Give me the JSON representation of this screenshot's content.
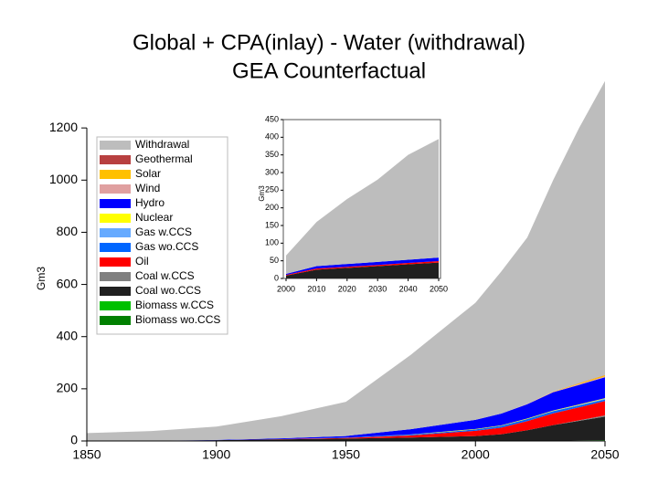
{
  "chart_data": [
    {
      "type": "area",
      "stacked": true,
      "title": [
        "Global + CPA(inlay) - Water (withdrawal)",
        "GEA Counterfactual"
      ],
      "ylabel": "Gm3",
      "x": [
        1850,
        1875,
        1900,
        1925,
        1950,
        1975,
        2000,
        2010,
        2020,
        2030,
        2040,
        2050
      ],
      "xlim": [
        1850,
        2050
      ],
      "xticks": [
        1850,
        1900,
        1950,
        2000,
        2050
      ],
      "ylim": [
        0,
        1400
      ],
      "yticks": [
        0,
        200,
        400,
        600,
        800,
        1000,
        1200
      ],
      "legend": "upper left",
      "series": [
        {
          "name": "Withdrawal",
          "color": "#bdbdbd",
          "values": [
            29,
            37,
            51,
            85,
            131,
            285,
            449,
            545,
            638,
            810,
            978,
            1127
          ]
        },
        {
          "name": "Geothermal",
          "color": "#b84040",
          "values": [
            0,
            0,
            0,
            0,
            0,
            0,
            0,
            0,
            0,
            0,
            1,
            1
          ]
        },
        {
          "name": "Solar",
          "color": "#ffc000",
          "values": [
            0,
            0,
            0,
            0,
            0,
            0,
            0,
            0,
            0,
            1,
            3,
            5
          ]
        },
        {
          "name": "Wind",
          "color": "#e0a0a0",
          "values": [
            0,
            0,
            0,
            0,
            0,
            0,
            0,
            0,
            1,
            2,
            3,
            3
          ]
        },
        {
          "name": "Hydro",
          "color": "#0000ff",
          "values": [
            0,
            0,
            1,
            3,
            6,
            20,
            35,
            45,
            55,
            70,
            75,
            80
          ]
        },
        {
          "name": "Nuclear",
          "color": "#ffff00",
          "values": [
            0,
            0,
            0,
            0,
            0,
            1,
            2,
            2,
            2,
            2,
            2,
            2
          ]
        },
        {
          "name": "Gas w.CCS",
          "color": "#66aaff",
          "values": [
            0,
            0,
            0,
            0,
            0,
            0,
            0,
            0,
            0,
            1,
            2,
            3
          ]
        },
        {
          "name": "Gas wo.CCS",
          "color": "#0066ff",
          "values": [
            0,
            0,
            0,
            0,
            1,
            3,
            5,
            7,
            8,
            8,
            7,
            6
          ]
        },
        {
          "name": "Oil",
          "color": "#ff0000",
          "values": [
            0,
            0,
            0,
            1,
            3,
            8,
            20,
            25,
            35,
            45,
            50,
            55
          ]
        },
        {
          "name": "Coal w.CCS",
          "color": "#808080",
          "values": [
            0,
            0,
            0,
            0,
            0,
            0,
            0,
            0,
            0,
            0,
            2,
            5
          ]
        },
        {
          "name": "Coal wo.CCS",
          "color": "#202020",
          "values": [
            0,
            0,
            2,
            5,
            8,
            12,
            18,
            25,
            40,
            60,
            75,
            90
          ]
        },
        {
          "name": "Biomass w.CCS",
          "color": "#00c000",
          "values": [
            0,
            0,
            0,
            0,
            0,
            0,
            0,
            0,
            0,
            0,
            1,
            2
          ]
        },
        {
          "name": "Biomass wo.CCS",
          "color": "#008000",
          "values": [
            1,
            1,
            1,
            1,
            1,
            1,
            1,
            1,
            1,
            1,
            1,
            1
          ]
        }
      ]
    },
    {
      "type": "area",
      "stacked": true,
      "ylabel": "Gm3",
      "x": [
        2000,
        2010,
        2020,
        2030,
        2040,
        2050
      ],
      "xlim": [
        2000,
        2050
      ],
      "xticks": [
        2000,
        2010,
        2020,
        2030,
        2040,
        2050
      ],
      "ylim": [
        0,
        450
      ],
      "yticks": [
        0,
        50,
        100,
        150,
        200,
        250,
        300,
        350,
        400,
        450
      ],
      "series": [
        {
          "name": "Withdrawal",
          "color": "#bdbdbd",
          "values": [
            52,
            125,
            184,
            233,
            297,
            336
          ]
        },
        {
          "name": "Hydro",
          "color": "#0000ff",
          "values": [
            3,
            7,
            8,
            9,
            9,
            10
          ]
        },
        {
          "name": "Oil",
          "color": "#ff0000",
          "values": [
            2,
            3,
            3,
            3,
            4,
            4
          ]
        },
        {
          "name": "Coal wo.CCS",
          "color": "#202020",
          "values": [
            8,
            25,
            30,
            35,
            40,
            45
          ]
        }
      ]
    }
  ]
}
